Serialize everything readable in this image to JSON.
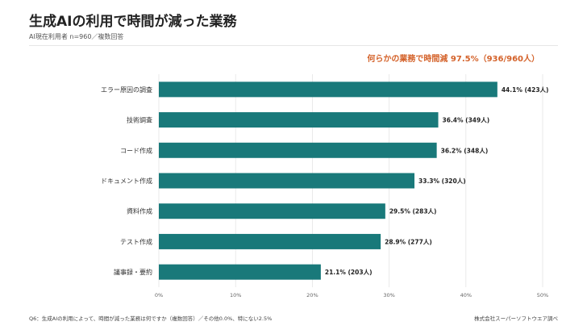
{
  "header": {
    "title": "生成AIの利用で時間が減った業務",
    "subtitle": "AI現在利用者 n=960／複数回答",
    "callout": "何らかの業務で時間減 97.5%（936/960人）"
  },
  "colors": {
    "bar": "#19797a",
    "callout": "#d4622a",
    "grid": "#e4e4e4",
    "text": "#333333"
  },
  "footer": {
    "note": "Q6：生成AIの利用によって、時間が減った業務は何ですか（複数回答）／その他0.0%、特にない2.5%",
    "credit": "株式会社スーパーソフトウエア調べ"
  },
  "chart_data": {
    "type": "bar",
    "orientation": "horizontal",
    "categories": [
      "エラー原因の調査",
      "技術調査",
      "コード作成",
      "ドキュメント作成",
      "資料作成",
      "テスト作成",
      "議事録・要約"
    ],
    "values": [
      44.1,
      36.4,
      36.2,
      33.3,
      29.5,
      28.9,
      21.1
    ],
    "labels": [
      "44.1% (423人)",
      "36.4% (349人)",
      "36.2% (348人)",
      "33.3% (320人)",
      "29.5% (283人)",
      "28.9% (277人)",
      "21.1% (203人)"
    ],
    "xlim": [
      0,
      50
    ],
    "xticks": [
      0,
      10,
      20,
      30,
      40,
      50
    ],
    "xtick_labels": [
      "0%",
      "10%",
      "20%",
      "30%",
      "40%",
      "50%"
    ],
    "grid": true,
    "legend": "none"
  }
}
